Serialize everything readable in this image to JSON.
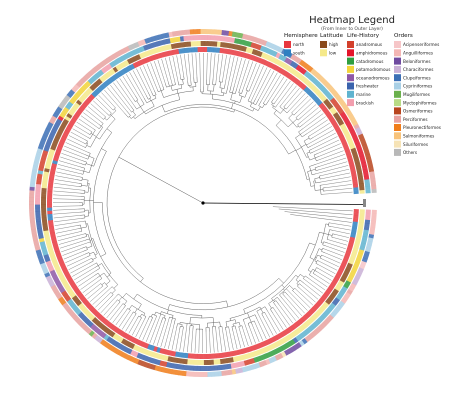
{
  "legend": {
    "title": "Heatmap Legend",
    "subtitle": "(From Inner to Outer Layer)",
    "columns": [
      {
        "heading": "Hemisphere",
        "items": [
          {
            "label": "north",
            "color": "#e8373e"
          },
          {
            "label": "south",
            "color": "#2e7fc1"
          }
        ]
      },
      {
        "heading": "Latitude",
        "items": [
          {
            "label": "high",
            "color": "#8a4a1c"
          },
          {
            "label": "low",
            "color": "#f5e98a"
          }
        ]
      },
      {
        "heading": "Life-History",
        "items": [
          {
            "label": "anadromous",
            "color": "#d33f2b"
          },
          {
            "label": "amphidromous",
            "color": "#e4142a"
          },
          {
            "label": "catadromous",
            "color": "#2f9e3f"
          },
          {
            "label": "potamodromous",
            "color": "#f2d43a"
          },
          {
            "label": "oceanodromous",
            "color": "#8e58a6"
          },
          {
            "label": "freshwater",
            "color": "#3a63ad"
          },
          {
            "label": "marine",
            "color": "#5fb3cf"
          },
          {
            "label": "brackish",
            "color": "#f29eae"
          }
        ]
      },
      {
        "heading": "Orders",
        "items": [
          {
            "label": "Acipenseriformes",
            "color": "#f6c6c8"
          },
          {
            "label": "Anguilliformes",
            "color": "#f4b6b4"
          },
          {
            "label": "Beloniformes",
            "color": "#6f4aa0"
          },
          {
            "label": "Characiformes",
            "color": "#c9b0d6"
          },
          {
            "label": "Clupeiformes",
            "color": "#3b6fb5"
          },
          {
            "label": "Cypriniformes",
            "color": "#a9d0e6"
          },
          {
            "label": "Mugiliformes",
            "color": "#6ab04c"
          },
          {
            "label": "Myctophiformes",
            "color": "#b9dc86"
          },
          {
            "label": "Osmeriformes",
            "color": "#b8451e"
          },
          {
            "label": "Perciformes",
            "color": "#e8a2a0"
          },
          {
            "label": "Pleuronectiformes",
            "color": "#f07d1a"
          },
          {
            "label": "Salmoniformes",
            "color": "#f8c37a"
          },
          {
            "label": "Siluriformes",
            "color": "#f6e3b6"
          },
          {
            "label": "Others",
            "color": "#b8b8b8"
          }
        ]
      }
    ]
  },
  "tree": {
    "branch_color": "#555555",
    "root_color": "#000000"
  }
}
